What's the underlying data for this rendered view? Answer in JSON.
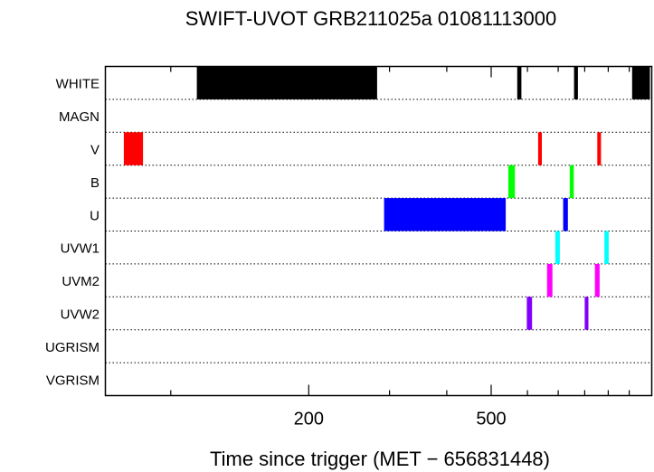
{
  "chart_data": {
    "type": "timeline",
    "title": "SWIFT-UVOT GRB211025a 01081113000",
    "xlabel": "Time since trigger (MET − 656831448)",
    "x_scale": "log",
    "xlim": [
      72,
      1120
    ],
    "x_tick_labels": [
      {
        "value": 200,
        "label": "200"
      },
      {
        "value": 500,
        "label": "500"
      }
    ],
    "x_minor_ticks": [
      100,
      300,
      400,
      600,
      700,
      800,
      900,
      1000
    ],
    "rows": [
      "WHITE",
      "MAGN",
      "V",
      "B",
      "U",
      "UVW1",
      "UVM2",
      "UVW2",
      "UGRISM",
      "VGRISM"
    ],
    "row_separators": "dotted",
    "series": [
      {
        "filter": "WHITE",
        "color": "#000000",
        "intervals": [
          [
            114,
            282
          ],
          [
            570,
            582
          ],
          [
            758,
            773
          ],
          [
            1015,
            1110
          ]
        ]
      },
      {
        "filter": "MAGN",
        "color": "#000000",
        "intervals": []
      },
      {
        "filter": "V",
        "color": "#ff0000",
        "intervals": [
          [
            79,
            87
          ],
          [
            633,
            645
          ],
          [
            852,
            868
          ]
        ]
      },
      {
        "filter": "B",
        "color": "#00ff00",
        "intervals": [
          [
            545,
            563
          ],
          [
            742,
            757
          ]
        ]
      },
      {
        "filter": "U",
        "color": "#0000ff",
        "intervals": [
          [
            292,
            538
          ],
          [
            718,
            735
          ]
        ]
      },
      {
        "filter": "UVW1",
        "color": "#00ffff",
        "intervals": [
          [
            690,
            706
          ],
          [
            883,
            902
          ]
        ]
      },
      {
        "filter": "UVM2",
        "color": "#ff00ff",
        "intervals": [
          [
            662,
            680
          ],
          [
            842,
            862
          ]
        ]
      },
      {
        "filter": "UVW2",
        "color": "#8000ff",
        "intervals": [
          [
            598,
            614
          ],
          [
            800,
            815
          ]
        ]
      },
      {
        "filter": "UGRISM",
        "color": "#000000",
        "intervals": []
      },
      {
        "filter": "VGRISM",
        "color": "#000000",
        "intervals": []
      }
    ]
  }
}
